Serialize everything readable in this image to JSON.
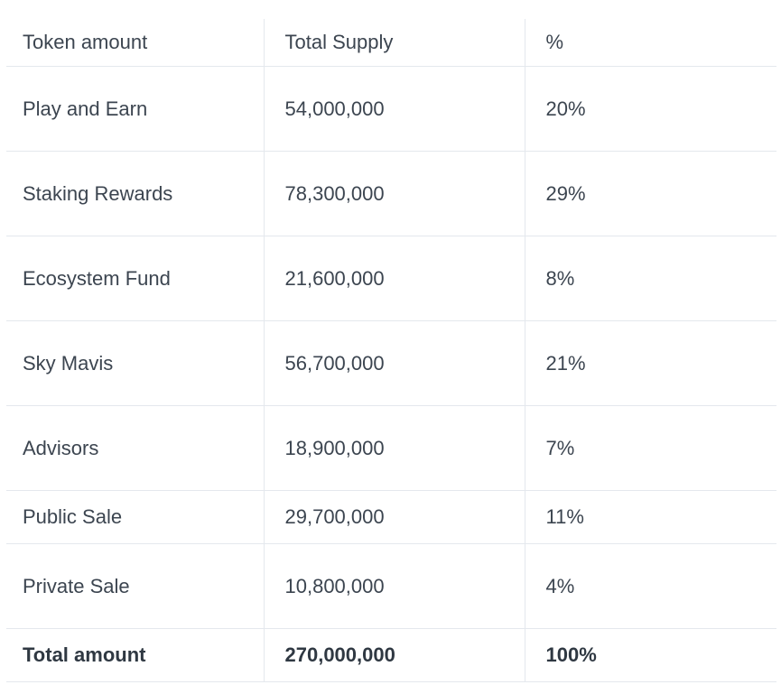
{
  "table": {
    "headers": [
      "Token amount",
      "Total Supply",
      "%"
    ],
    "rows": [
      {
        "name": "Play and Earn",
        "supply": "54,000,000",
        "pct": "20%"
      },
      {
        "name": "Staking Rewards",
        "supply": "78,300,000",
        "pct": "29%"
      },
      {
        "name": "Ecosystem Fund",
        "supply": "21,600,000",
        "pct": "8%"
      },
      {
        "name": "Sky Mavis",
        "supply": "56,700,000",
        "pct": "21%"
      },
      {
        "name": "Advisors",
        "supply": "18,900,000",
        "pct": "7%"
      },
      {
        "name": "Public Sale",
        "supply": "29,700,000",
        "pct": "11%"
      },
      {
        "name": "Private Sale",
        "supply": "10,800,000",
        "pct": "4%"
      }
    ],
    "total": {
      "name": "Total amount",
      "supply": "270,000,000",
      "pct": "100%"
    }
  }
}
